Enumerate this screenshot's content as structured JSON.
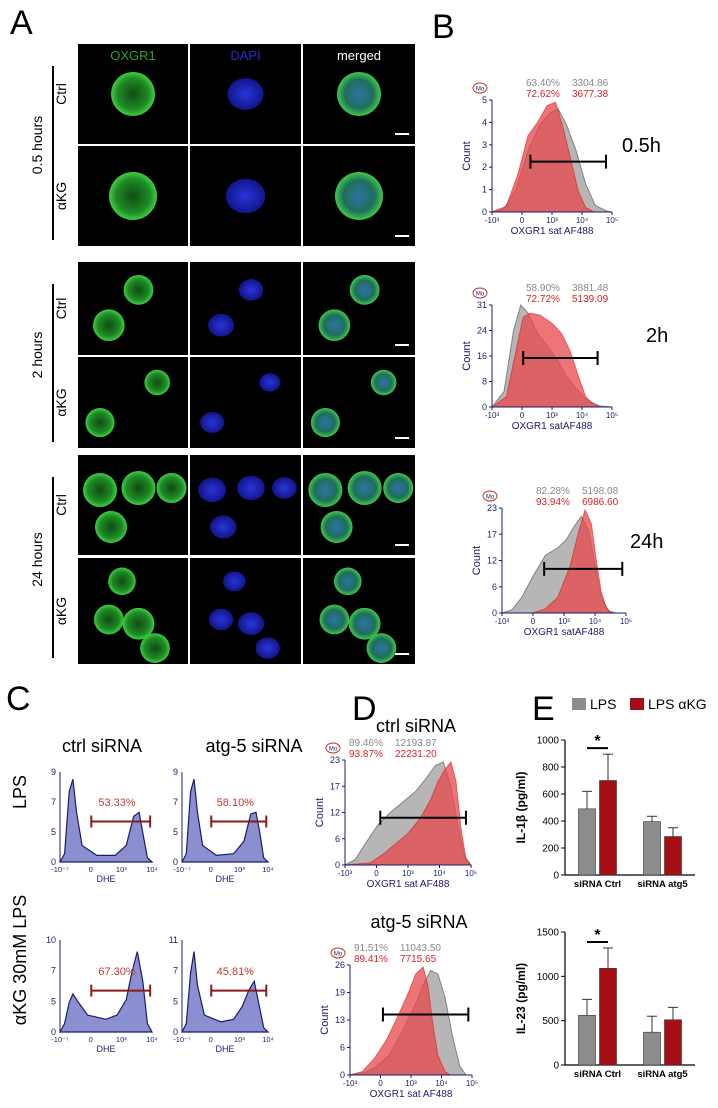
{
  "panels": {
    "A": "A",
    "B": "B",
    "C": "C",
    "D": "D",
    "E": "E"
  },
  "panelA": {
    "channels": [
      "OXGR1",
      "DAPI",
      "merged"
    ],
    "timepoints": [
      {
        "label": "0.5 hours",
        "rows": [
          "Ctrl",
          "αKG"
        ]
      },
      {
        "label": "2 hours",
        "rows": [
          "Ctrl",
          "αKG"
        ]
      },
      {
        "label": "24 hours",
        "rows": [
          "Ctrl",
          "αKG"
        ]
      }
    ]
  },
  "panelB": {
    "plots": [
      {
        "time": "0.5h",
        "grey_pct": "63.40%",
        "grey_val": "3304.86",
        "red_pct": "72.62%",
        "red_val": "3677.38",
        "xlabel": "OXGR1 sat AF488",
        "ylabel": "Count",
        "yticks": [
          "0",
          "1",
          "2",
          "3",
          "4",
          "5"
        ]
      },
      {
        "time": "2h",
        "grey_pct": "58.90%",
        "grey_val": "3881.48",
        "red_pct": "72.72%",
        "red_val": "5139.09",
        "xlabel": "OXGR1 satAF488",
        "ylabel": "Count",
        "yticks": [
          "0",
          "8",
          "16",
          "24",
          "31"
        ]
      },
      {
        "time": "24h",
        "grey_pct": "82.28%",
        "grey_val": "5198.08",
        "red_pct": "93.94%",
        "red_val": "6986.60",
        "xlabel": "OXGR1 satAF488",
        "ylabel": "Count",
        "yticks": [
          "0",
          "6",
          "12",
          "17",
          "23"
        ]
      }
    ],
    "xticks": [
      "-10³",
      "0",
      "10³",
      "10⁴",
      "10⁵"
    ],
    "mode_icon": "Mo"
  },
  "panelC": {
    "col_titles": [
      "ctrl siRNA",
      "atg-5 siRNA"
    ],
    "row_titles": [
      "LPS",
      "αKG 30mM LPS"
    ],
    "plots": [
      {
        "pct": "53.33%",
        "yticks": [
          "0",
          "5",
          "7",
          "9"
        ]
      },
      {
        "pct": "58.10%",
        "yticks": [
          "0",
          "5",
          "7",
          "9"
        ]
      },
      {
        "pct": "67.30%",
        "yticks": [
          "0",
          "5",
          "7",
          "10"
        ]
      },
      {
        "pct": "45.81%",
        "yticks": [
          "0",
          "5",
          "7",
          "11"
        ]
      }
    ],
    "xticks": [
      "-10⁻⁷",
      "0",
      "10³",
      "10⁴"
    ],
    "xlabel": "DHE"
  },
  "panelD": {
    "plots": [
      {
        "title": "ctrl siRNA",
        "grey_pct": "89.46%",
        "grey_val": "12193.87",
        "red_pct": "93.87%",
        "red_val": "22231.20",
        "yticks": [
          "0",
          "6",
          "12",
          "17",
          "23"
        ]
      },
      {
        "title": "atg-5 siRNA",
        "grey_pct": "91.51%",
        "grey_val": "11043.50",
        "red_pct": "89.41%",
        "red_val": "7715.65",
        "yticks": [
          "0",
          "6",
          "13",
          "19",
          "26"
        ]
      }
    ],
    "xticks": [
      "-10³",
      "0",
      "10³",
      "10⁴",
      "10⁵"
    ],
    "xlabel": "OXGR1 sat AF488",
    "ylabel": "Count",
    "mode_icon": "Mo"
  },
  "chart_data": [
    {
      "type": "bar",
      "categories": [
        "siRNA Ctrl",
        "siRNA atg5"
      ],
      "series": [
        {
          "name": "LPS",
          "values": [
            490,
            395
          ],
          "errors": [
            130,
            40
          ],
          "color": "#8c8c8c"
        },
        {
          "name": "LPS αKG",
          "values": [
            700,
            285
          ],
          "errors": [
            195,
            65
          ],
          "color": "#a50f15"
        }
      ],
      "ylabel": "IL-1β (pg/ml)",
      "ylim": [
        0,
        1000
      ],
      "yticks": [
        "0",
        "200",
        "400",
        "600",
        "800",
        "1000"
      ],
      "significance": "*",
      "legend": [
        "LPS",
        "LPS αKG"
      ]
    },
    {
      "type": "bar",
      "categories": [
        "siRNA Ctrl",
        "siRNA atg5"
      ],
      "series": [
        {
          "name": "LPS",
          "values": [
            560,
            370
          ],
          "errors": [
            180,
            180
          ],
          "color": "#8c8c8c"
        },
        {
          "name": "LPS αKG",
          "values": [
            1090,
            510
          ],
          "errors": [
            230,
            140
          ],
          "color": "#a50f15"
        }
      ],
      "ylabel": "IL-23 (pg/ml)",
      "ylim": [
        0,
        1500
      ],
      "yticks": [
        "0",
        "500",
        "1000",
        "1500"
      ],
      "significance": "*"
    }
  ]
}
